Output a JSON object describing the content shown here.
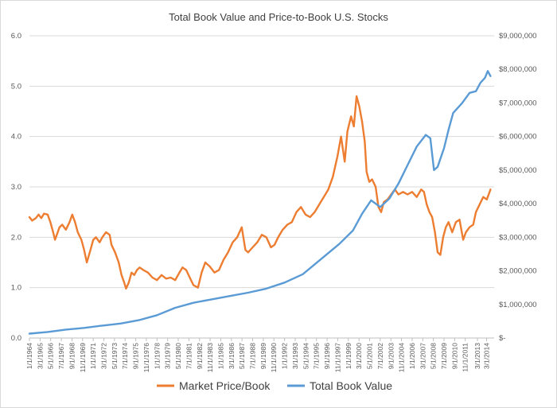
{
  "chart_data": {
    "type": "line",
    "title": "Total Book Value and Price-to-Book U.S. Stocks",
    "xlabel": "",
    "ylabel_left": "",
    "ylabel_right": "",
    "x_range": [
      1964.0,
      2015.0
    ],
    "ylim_left": [
      0,
      6
    ],
    "ylim_right": [
      0,
      9000000
    ],
    "y_left_ticks": [
      {
        "value": 0,
        "label": "0.0"
      },
      {
        "value": 1,
        "label": "1.0"
      },
      {
        "value": 2,
        "label": "2.0"
      },
      {
        "value": 3,
        "label": "3.0"
      },
      {
        "value": 4,
        "label": "4.0"
      },
      {
        "value": 5,
        "label": "5.0"
      },
      {
        "value": 6,
        "label": "6.0"
      }
    ],
    "y_right_ticks": [
      {
        "value": 0,
        "label": "$-"
      },
      {
        "value": 1000000,
        "label": "$1,000,000"
      },
      {
        "value": 2000000,
        "label": "$2,000,000"
      },
      {
        "value": 3000000,
        "label": "$3,000,000"
      },
      {
        "value": 4000000,
        "label": "$4,000,000"
      },
      {
        "value": 5000000,
        "label": "$5,000,000"
      },
      {
        "value": 6000000,
        "label": "$6,000,000"
      },
      {
        "value": 7000000,
        "label": "$7,000,000"
      },
      {
        "value": 8000000,
        "label": "$8,000,000"
      },
      {
        "value": 9000000,
        "label": "$9,000,000"
      }
    ],
    "x_tick_labels": [
      {
        "t": 1964.0,
        "label": "1/1/1964"
      },
      {
        "t": 1965.17,
        "label": "3/1/1965"
      },
      {
        "t": 1966.33,
        "label": "5/1/1966"
      },
      {
        "t": 1967.5,
        "label": "7/1/1967"
      },
      {
        "t": 1968.67,
        "label": "9/1/1968"
      },
      {
        "t": 1969.83,
        "label": "11/1/1969"
      },
      {
        "t": 1971.0,
        "label": "1/1/1971"
      },
      {
        "t": 1972.17,
        "label": "3/1/1972"
      },
      {
        "t": 1973.33,
        "label": "5/1/1973"
      },
      {
        "t": 1974.5,
        "label": "7/1/1974"
      },
      {
        "t": 1975.67,
        "label": "9/1/1975"
      },
      {
        "t": 1976.83,
        "label": "11/1/1976"
      },
      {
        "t": 1978.0,
        "label": "1/1/1978"
      },
      {
        "t": 1979.17,
        "label": "3/1/1979"
      },
      {
        "t": 1980.33,
        "label": "5/1/1980"
      },
      {
        "t": 1981.5,
        "label": "7/1/1981"
      },
      {
        "t": 1982.67,
        "label": "9/1/1982"
      },
      {
        "t": 1983.83,
        "label": "11/1/1983"
      },
      {
        "t": 1985.0,
        "label": "1/1/1985"
      },
      {
        "t": 1986.17,
        "label": "3/1/1986"
      },
      {
        "t": 1987.33,
        "label": "5/1/1987"
      },
      {
        "t": 1988.5,
        "label": "7/1/1988"
      },
      {
        "t": 1989.67,
        "label": "9/1/1989"
      },
      {
        "t": 1990.83,
        "label": "11/1/1990"
      },
      {
        "t": 1992.0,
        "label": "1/1/1992"
      },
      {
        "t": 1993.17,
        "label": "3/1/1993"
      },
      {
        "t": 1994.33,
        "label": "5/1/1994"
      },
      {
        "t": 1995.5,
        "label": "7/1/1995"
      },
      {
        "t": 1996.67,
        "label": "9/1/1996"
      },
      {
        "t": 1997.83,
        "label": "11/1/1997"
      },
      {
        "t": 1999.0,
        "label": "1/1/1999"
      },
      {
        "t": 2000.17,
        "label": "3/1/2000"
      },
      {
        "t": 2001.33,
        "label": "5/1/2001"
      },
      {
        "t": 2002.5,
        "label": "7/1/2002"
      },
      {
        "t": 2003.67,
        "label": "9/1/2003"
      },
      {
        "t": 2004.83,
        "label": "11/1/2004"
      },
      {
        "t": 2006.0,
        "label": "1/1/2006"
      },
      {
        "t": 2007.17,
        "label": "3/1/2007"
      },
      {
        "t": 2008.33,
        "label": "5/1/2008"
      },
      {
        "t": 2009.5,
        "label": "7/1/2009"
      },
      {
        "t": 2010.67,
        "label": "9/1/2010"
      },
      {
        "t": 2011.83,
        "label": "11/1/2011"
      },
      {
        "t": 2013.17,
        "label": "3/1/2013"
      },
      {
        "t": 2014.17,
        "label": "3/1/2014"
      }
    ],
    "series": [
      {
        "name": "Market Price/Book",
        "axis": "left",
        "color": "#ED7D31",
        "points": [
          [
            1964.0,
            2.4
          ],
          [
            1964.3,
            2.33
          ],
          [
            1964.7,
            2.38
          ],
          [
            1965.0,
            2.45
          ],
          [
            1965.3,
            2.38
          ],
          [
            1965.6,
            2.47
          ],
          [
            1966.0,
            2.45
          ],
          [
            1966.3,
            2.3
          ],
          [
            1966.6,
            2.1
          ],
          [
            1966.8,
            1.95
          ],
          [
            1967.0,
            2.05
          ],
          [
            1967.3,
            2.2
          ],
          [
            1967.6,
            2.25
          ],
          [
            1968.0,
            2.15
          ],
          [
            1968.4,
            2.3
          ],
          [
            1968.7,
            2.45
          ],
          [
            1969.0,
            2.3
          ],
          [
            1969.3,
            2.1
          ],
          [
            1969.7,
            1.95
          ],
          [
            1970.0,
            1.75
          ],
          [
            1970.3,
            1.5
          ],
          [
            1970.7,
            1.75
          ],
          [
            1971.0,
            1.95
          ],
          [
            1971.3,
            2.0
          ],
          [
            1971.7,
            1.9
          ],
          [
            1972.0,
            2.0
          ],
          [
            1972.4,
            2.1
          ],
          [
            1972.8,
            2.05
          ],
          [
            1973.0,
            1.85
          ],
          [
            1973.4,
            1.7
          ],
          [
            1973.8,
            1.5
          ],
          [
            1974.1,
            1.25
          ],
          [
            1974.4,
            1.1
          ],
          [
            1974.6,
            0.98
          ],
          [
            1974.9,
            1.1
          ],
          [
            1975.2,
            1.3
          ],
          [
            1975.5,
            1.25
          ],
          [
            1975.8,
            1.35
          ],
          [
            1976.1,
            1.4
          ],
          [
            1976.5,
            1.35
          ],
          [
            1977.0,
            1.3
          ],
          [
            1977.5,
            1.2
          ],
          [
            1978.0,
            1.15
          ],
          [
            1978.5,
            1.25
          ],
          [
            1979.0,
            1.18
          ],
          [
            1979.5,
            1.2
          ],
          [
            1980.0,
            1.15
          ],
          [
            1980.4,
            1.28
          ],
          [
            1980.8,
            1.4
          ],
          [
            1981.2,
            1.35
          ],
          [
            1981.6,
            1.2
          ],
          [
            1982.0,
            1.05
          ],
          [
            1982.5,
            1.0
          ],
          [
            1982.9,
            1.3
          ],
          [
            1983.3,
            1.5
          ],
          [
            1983.8,
            1.42
          ],
          [
            1984.3,
            1.3
          ],
          [
            1984.8,
            1.35
          ],
          [
            1985.3,
            1.55
          ],
          [
            1985.8,
            1.7
          ],
          [
            1986.3,
            1.9
          ],
          [
            1986.8,
            2.0
          ],
          [
            1987.3,
            2.2
          ],
          [
            1987.7,
            1.75
          ],
          [
            1988.0,
            1.7
          ],
          [
            1988.5,
            1.8
          ],
          [
            1989.0,
            1.9
          ],
          [
            1989.5,
            2.05
          ],
          [
            1990.0,
            2.0
          ],
          [
            1990.5,
            1.8
          ],
          [
            1990.9,
            1.85
          ],
          [
            1991.3,
            2.0
          ],
          [
            1991.8,
            2.15
          ],
          [
            1992.3,
            2.25
          ],
          [
            1992.8,
            2.3
          ],
          [
            1993.3,
            2.5
          ],
          [
            1993.8,
            2.6
          ],
          [
            1994.3,
            2.45
          ],
          [
            1994.8,
            2.4
          ],
          [
            1995.3,
            2.5
          ],
          [
            1995.8,
            2.65
          ],
          [
            1996.3,
            2.8
          ],
          [
            1996.8,
            2.95
          ],
          [
            1997.3,
            3.2
          ],
          [
            1997.8,
            3.6
          ],
          [
            1998.2,
            4.0
          ],
          [
            1998.6,
            3.5
          ],
          [
            1998.9,
            4.1
          ],
          [
            1999.3,
            4.4
          ],
          [
            1999.6,
            4.2
          ],
          [
            1999.9,
            4.8
          ],
          [
            2000.2,
            4.6
          ],
          [
            2000.5,
            4.3
          ],
          [
            2000.8,
            3.9
          ],
          [
            2001.0,
            3.3
          ],
          [
            2001.3,
            3.1
          ],
          [
            2001.6,
            3.15
          ],
          [
            2002.0,
            3.0
          ],
          [
            2002.3,
            2.6
          ],
          [
            2002.6,
            2.5
          ],
          [
            2002.9,
            2.7
          ],
          [
            2003.3,
            2.75
          ],
          [
            2003.7,
            2.85
          ],
          [
            2004.1,
            2.95
          ],
          [
            2004.5,
            2.85
          ],
          [
            2005.0,
            2.9
          ],
          [
            2005.5,
            2.85
          ],
          [
            2006.0,
            2.9
          ],
          [
            2006.5,
            2.8
          ],
          [
            2007.0,
            2.95
          ],
          [
            2007.3,
            2.9
          ],
          [
            2007.6,
            2.65
          ],
          [
            2007.9,
            2.5
          ],
          [
            2008.2,
            2.4
          ],
          [
            2008.5,
            2.1
          ],
          [
            2008.8,
            1.7
          ],
          [
            2009.1,
            1.65
          ],
          [
            2009.4,
            2.0
          ],
          [
            2009.7,
            2.2
          ],
          [
            2010.0,
            2.3
          ],
          [
            2010.4,
            2.1
          ],
          [
            2010.8,
            2.3
          ],
          [
            2011.2,
            2.35
          ],
          [
            2011.6,
            1.95
          ],
          [
            2011.9,
            2.1
          ],
          [
            2012.3,
            2.2
          ],
          [
            2012.7,
            2.25
          ],
          [
            2013.0,
            2.5
          ],
          [
            2013.4,
            2.65
          ],
          [
            2013.8,
            2.8
          ],
          [
            2014.2,
            2.75
          ],
          [
            2014.5,
            2.9
          ],
          [
            2014.6,
            2.95
          ]
        ]
      },
      {
        "name": "Total Book Value",
        "axis": "right",
        "color": "#5B9BD5",
        "points": [
          [
            1964.0,
            130000
          ],
          [
            1966.0,
            180000
          ],
          [
            1968.0,
            250000
          ],
          [
            1970.0,
            300000
          ],
          [
            1972.0,
            370000
          ],
          [
            1974.0,
            430000
          ],
          [
            1976.0,
            530000
          ],
          [
            1978.0,
            680000
          ],
          [
            1980.0,
            900000
          ],
          [
            1982.0,
            1050000
          ],
          [
            1984.0,
            1150000
          ],
          [
            1986.0,
            1250000
          ],
          [
            1988.0,
            1350000
          ],
          [
            1990.0,
            1470000
          ],
          [
            1992.0,
            1650000
          ],
          [
            1994.0,
            1900000
          ],
          [
            1996.0,
            2350000
          ],
          [
            1998.0,
            2800000
          ],
          [
            1999.5,
            3200000
          ],
          [
            2000.5,
            3700000
          ],
          [
            2001.5,
            4100000
          ],
          [
            2002.5,
            3900000
          ],
          [
            2003.5,
            4150000
          ],
          [
            2004.5,
            4600000
          ],
          [
            2005.5,
            5150000
          ],
          [
            2006.5,
            5700000
          ],
          [
            2007.5,
            6050000
          ],
          [
            2008.0,
            5950000
          ],
          [
            2008.4,
            5000000
          ],
          [
            2008.8,
            5100000
          ],
          [
            2009.5,
            5650000
          ],
          [
            2010.0,
            6200000
          ],
          [
            2010.5,
            6700000
          ],
          [
            2011.5,
            7000000
          ],
          [
            2012.3,
            7300000
          ],
          [
            2013.0,
            7350000
          ],
          [
            2013.5,
            7600000
          ],
          [
            2014.0,
            7750000
          ],
          [
            2014.3,
            7950000
          ],
          [
            2014.6,
            7800000
          ]
        ]
      }
    ],
    "legend": {
      "position": "bottom",
      "entries": [
        "Market Price/Book",
        "Total Book Value"
      ]
    }
  }
}
